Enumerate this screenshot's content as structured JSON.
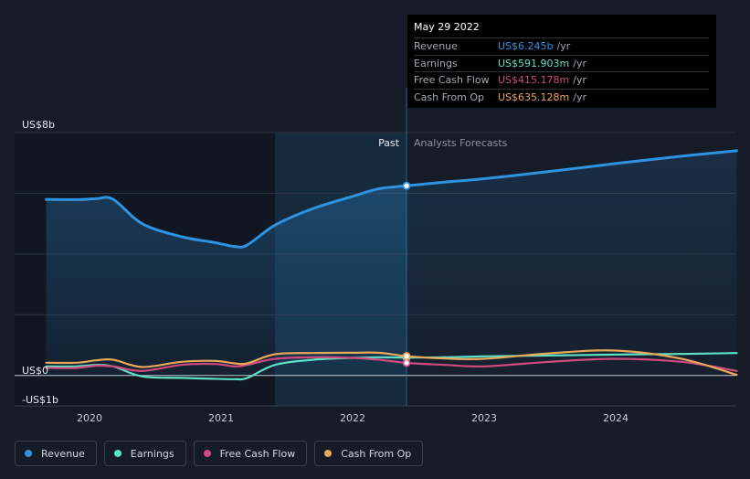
{
  "colors": {
    "revenue": "#2e93e0",
    "earnings": "#5ee0c7",
    "free_cash_flow": "#d0497f",
    "cash_from_op": "#e8a85a"
  },
  "tooltip": {
    "date": "May 29 2022",
    "rows": [
      {
        "label": "Revenue",
        "value": "US$6.245b",
        "unit": "/yr"
      },
      {
        "label": "Earnings",
        "value": "US$591.903m",
        "unit": "/yr"
      },
      {
        "label": "Free Cash Flow",
        "value": "US$415.178m",
        "unit": "/yr"
      },
      {
        "label": "Cash From Op",
        "value": "US$635.128m",
        "unit": "/yr"
      }
    ]
  },
  "legend": [
    {
      "label": "Revenue",
      "key": "revenue"
    },
    {
      "label": "Earnings",
      "key": "earnings"
    },
    {
      "label": "Free Cash Flow",
      "key": "free_cash_flow"
    },
    {
      "label": "Cash From Op",
      "key": "cash_from_op"
    }
  ],
  "chart_data": {
    "type": "line",
    "title": "",
    "y_unit": "USD billions",
    "ylim": [
      -1,
      8
    ],
    "y_ticks": [
      {
        "value": 8,
        "label": "US$8b"
      },
      {
        "value": 0,
        "label": "US$0"
      },
      {
        "value": -1,
        "label": "-US$1b"
      }
    ],
    "x_ticks": [
      {
        "value": 2020,
        "label": "2020"
      },
      {
        "value": 2021,
        "label": "2021"
      },
      {
        "value": 2022,
        "label": "2022"
      },
      {
        "value": 2023,
        "label": "2023"
      },
      {
        "value": 2024,
        "label": "2024"
      }
    ],
    "xlim": [
      2019.55,
      2024.92
    ],
    "past_label": "Past",
    "forecast_label": "Analysts Forecasts",
    "shade_start": 2021.41,
    "divider_x": 2022.41,
    "series": [
      {
        "name": "Revenue",
        "key": "revenue",
        "points": [
          [
            2019.67,
            5.8
          ],
          [
            2019.9,
            5.79
          ],
          [
            2020.05,
            5.82
          ],
          [
            2020.18,
            5.8
          ],
          [
            2020.4,
            5.0
          ],
          [
            2020.7,
            4.57
          ],
          [
            2020.95,
            4.38
          ],
          [
            2021.1,
            4.25
          ],
          [
            2021.2,
            4.3
          ],
          [
            2021.41,
            4.95
          ],
          [
            2021.7,
            5.5
          ],
          [
            2022.0,
            5.9
          ],
          [
            2022.2,
            6.15
          ],
          [
            2022.41,
            6.245
          ],
          [
            2022.7,
            6.37
          ],
          [
            2023.0,
            6.48
          ],
          [
            2023.5,
            6.72
          ],
          [
            2024.0,
            6.98
          ],
          [
            2024.5,
            7.22
          ],
          [
            2024.92,
            7.4
          ]
        ]
      },
      {
        "name": "Earnings",
        "key": "earnings",
        "points": [
          [
            2019.67,
            0.3
          ],
          [
            2019.9,
            0.3
          ],
          [
            2020.05,
            0.35
          ],
          [
            2020.18,
            0.3
          ],
          [
            2020.4,
            -0.03
          ],
          [
            2020.7,
            -0.08
          ],
          [
            2020.95,
            -0.11
          ],
          [
            2021.1,
            -0.12
          ],
          [
            2021.2,
            -0.08
          ],
          [
            2021.41,
            0.35
          ],
          [
            2021.7,
            0.52
          ],
          [
            2022.0,
            0.58
          ],
          [
            2022.2,
            0.6
          ],
          [
            2022.41,
            0.592
          ],
          [
            2022.7,
            0.6
          ],
          [
            2023.0,
            0.63
          ],
          [
            2023.5,
            0.66
          ],
          [
            2024.0,
            0.69
          ],
          [
            2024.5,
            0.71
          ],
          [
            2024.92,
            0.74
          ]
        ]
      },
      {
        "name": "Free Cash Flow",
        "key": "free_cash_flow",
        "points": [
          [
            2019.67,
            0.25
          ],
          [
            2019.9,
            0.25
          ],
          [
            2020.05,
            0.32
          ],
          [
            2020.18,
            0.3
          ],
          [
            2020.4,
            0.15
          ],
          [
            2020.7,
            0.35
          ],
          [
            2020.95,
            0.38
          ],
          [
            2021.1,
            0.3
          ],
          [
            2021.2,
            0.35
          ],
          [
            2021.41,
            0.55
          ],
          [
            2021.7,
            0.6
          ],
          [
            2022.0,
            0.58
          ],
          [
            2022.2,
            0.52
          ],
          [
            2022.41,
            0.415
          ],
          [
            2022.7,
            0.35
          ],
          [
            2023.0,
            0.3
          ],
          [
            2023.5,
            0.45
          ],
          [
            2024.0,
            0.55
          ],
          [
            2024.5,
            0.45
          ],
          [
            2024.92,
            0.15
          ]
        ]
      },
      {
        "name": "Cash From Op",
        "key": "cash_from_op",
        "points": [
          [
            2019.67,
            0.42
          ],
          [
            2019.9,
            0.42
          ],
          [
            2020.05,
            0.5
          ],
          [
            2020.18,
            0.52
          ],
          [
            2020.4,
            0.28
          ],
          [
            2020.7,
            0.45
          ],
          [
            2020.95,
            0.48
          ],
          [
            2021.1,
            0.4
          ],
          [
            2021.2,
            0.4
          ],
          [
            2021.41,
            0.7
          ],
          [
            2021.7,
            0.74
          ],
          [
            2022.0,
            0.75
          ],
          [
            2022.2,
            0.75
          ],
          [
            2022.41,
            0.635
          ],
          [
            2022.7,
            0.56
          ],
          [
            2023.0,
            0.55
          ],
          [
            2023.5,
            0.73
          ],
          [
            2024.0,
            0.82
          ],
          [
            2024.5,
            0.55
          ],
          [
            2024.92,
            0.02
          ]
        ]
      }
    ]
  }
}
